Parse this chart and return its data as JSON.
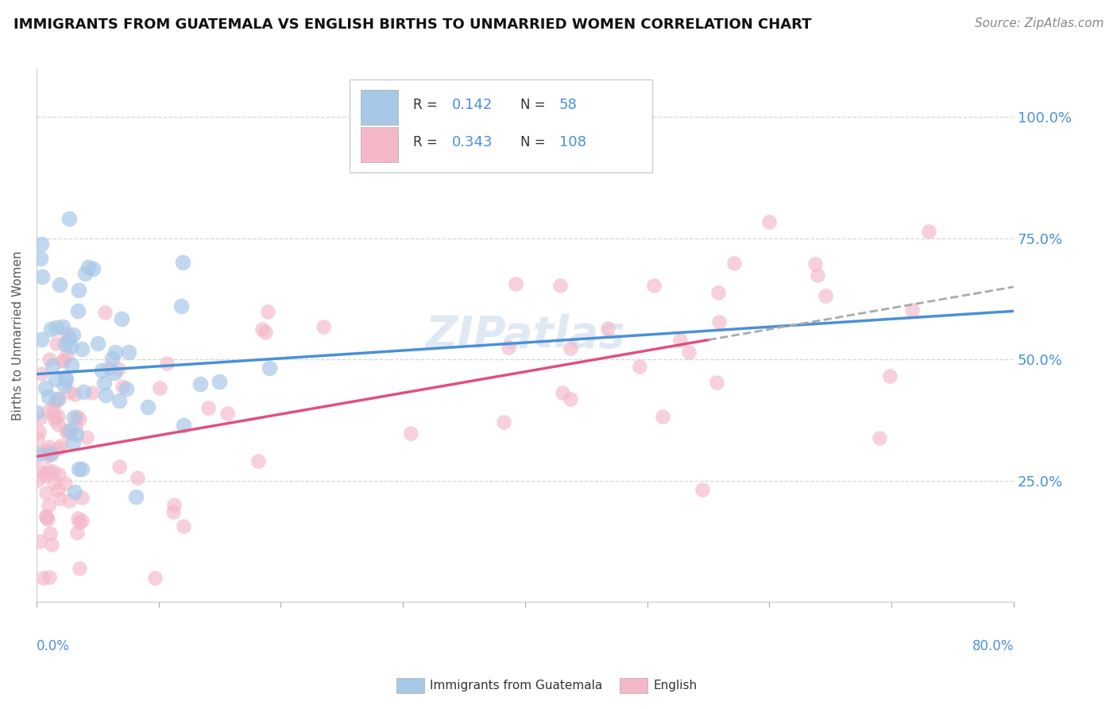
{
  "title": "IMMIGRANTS FROM GUATEMALA VS ENGLISH BIRTHS TO UNMARRIED WOMEN CORRELATION CHART",
  "source": "Source: ZipAtlas.com",
  "ylabel": "Births to Unmarried Women",
  "legend_r1_val": "0.142",
  "legend_n1_val": "58",
  "legend_r2_val": "0.343",
  "legend_n2_val": "108",
  "legend_label1": "Immigrants from Guatemala",
  "legend_label2": "English",
  "color_blue": "#a8c8e8",
  "color_blue_fill": "#a8c8e8",
  "color_pink": "#f4b8c8",
  "color_blue_line": "#4a90d9",
  "color_pink_line": "#e05080",
  "color_blue_text": "#4a90d9",
  "color_gray_text": "#888888",
  "watermark": "ZIPatlas",
  "xlim": [
    0,
    80
  ],
  "ylim": [
    0,
    110
  ],
  "ytick_vals": [
    25,
    50,
    75,
    100
  ],
  "blue_line_x0": 0,
  "blue_line_x1": 80,
  "blue_line_y0": 47.0,
  "blue_line_y1": 60.0,
  "pink_line_x0": 0,
  "pink_line_x1": 80,
  "pink_line_y0": 30.0,
  "pink_line_y1": 65.0,
  "gray_dash_x0": 55,
  "gray_dash_x1": 80,
  "gray_dash_y0": 57.5,
  "gray_dash_y1": 65.0
}
